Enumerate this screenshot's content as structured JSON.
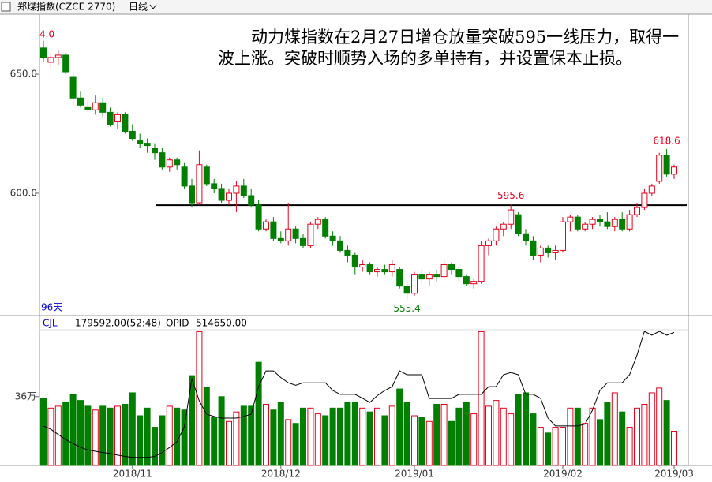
{
  "chart_data": [
    {
      "type": "candlestick",
      "title": "郑煤指数(CZCE 2770)",
      "period": "日线",
      "window": "96天",
      "annotation": "动力煤指数在2月27日增仓放量突破595一线压力，取得一波上涨。突破时顺势入场的多单持有，并设置保本止损。",
      "open": [
        661,
        655,
        657,
        658,
        649,
        640,
        636,
        635,
        638,
        634,
        630,
        633,
        626,
        622,
        621,
        619,
        617,
        611,
        614,
        611,
        603,
        596,
        611,
        604,
        602,
        597,
        600,
        603,
        599,
        595,
        585,
        588,
        581,
        580,
        585,
        581,
        578,
        587,
        589,
        582,
        580,
        576,
        574,
        569,
        570,
        567,
        568,
        567,
        568,
        561,
        558,
        566,
        564,
        566,
        565,
        570,
        568,
        565,
        562,
        563,
        578,
        580,
        585,
        587,
        591,
        583,
        580,
        574,
        577,
        575,
        576,
        588,
        590,
        585,
        587,
        589,
        588,
        586,
        589,
        585,
        591,
        594,
        600,
        605,
        616,
        608
      ],
      "high": [
        664,
        659,
        660,
        659,
        651,
        643,
        639,
        641,
        640,
        636,
        634,
        634,
        629,
        625,
        623,
        621,
        619,
        615,
        615,
        613,
        606,
        618,
        612,
        606,
        604,
        602,
        605,
        606,
        602,
        597,
        589,
        590,
        584,
        596,
        586,
        583,
        588,
        590,
        590,
        584,
        582,
        578,
        575,
        572,
        571,
        569,
        570,
        572,
        569,
        563,
        567,
        568,
        567,
        568,
        572,
        571,
        569,
        566,
        564,
        580,
        581,
        586,
        588,
        595.6,
        592,
        585,
        582,
        578,
        578,
        578,
        590,
        591,
        591,
        588,
        590,
        591,
        592,
        590,
        592,
        593,
        596,
        602,
        604,
        617,
        618.6,
        612
      ],
      "low": [
        655,
        652,
        654,
        650,
        637,
        636,
        634,
        633,
        632,
        628,
        627,
        625,
        622,
        619,
        617,
        614,
        610,
        609,
        610,
        602,
        594,
        595,
        603,
        600,
        596,
        595,
        592,
        598,
        594,
        584,
        584,
        580,
        579,
        578,
        579,
        577,
        577,
        585,
        581,
        578,
        575,
        571,
        566,
        567,
        566,
        565,
        566,
        565,
        560,
        555.4,
        557,
        562,
        561,
        563,
        564,
        566,
        563,
        561,
        560,
        562,
        574,
        578,
        582,
        585,
        582,
        578,
        572,
        571,
        573,
        572,
        575,
        584,
        584,
        584,
        585,
        586,
        585,
        584,
        584,
        584,
        590,
        593,
        599,
        604,
        607,
        606
      ],
      "close": [
        657,
        657,
        658,
        651,
        640,
        637,
        635,
        638,
        634,
        629,
        633,
        626,
        623,
        621,
        620,
        617,
        611,
        614,
        612,
        603,
        596,
        612,
        604,
        602,
        597,
        600,
        603,
        599,
        595,
        585,
        588,
        581,
        580,
        585,
        581,
        578,
        587,
        589,
        582,
        580,
        576,
        574,
        569,
        570,
        567,
        568,
        567,
        570,
        561,
        558,
        566,
        564,
        566,
        565,
        570,
        568,
        565,
        562,
        563,
        578,
        580,
        585,
        587,
        593,
        583,
        580,
        574,
        577,
        575,
        576,
        588,
        590,
        585,
        587,
        589,
        588,
        586,
        589,
        585,
        591,
        594,
        600,
        603,
        616,
        608,
        611
      ],
      "ylim": [
        549.3,
        675.2
      ],
      "yticks": [
        {
          "value": 600,
          "label": "600.0"
        },
        {
          "value": 650,
          "label": "650.0"
        }
      ],
      "up_color": "#e8001c",
      "down_color": "#007f00",
      "point_labels": [
        {
          "value": 595.6,
          "label": "595.6"
        },
        {
          "value": 555.4,
          "label": "555.4"
        },
        {
          "value": 618.6,
          "label": "618.6"
        }
      ],
      "clipped_label": "4.0",
      "level_line": 595
    },
    {
      "type": "bar",
      "readout": "179592.00(52:48)",
      "categories": [
        null,
        null,
        null,
        null,
        null,
        null,
        null,
        null,
        null,
        null,
        null,
        null,
        "2018/11",
        null,
        null,
        null,
        null,
        null,
        null,
        null,
        null,
        null,
        null,
        null,
        null,
        null,
        null,
        null,
        null,
        null,
        null,
        null,
        "2018/12",
        null,
        null,
        null,
        null,
        null,
        null,
        null,
        null,
        null,
        null,
        null,
        null,
        null,
        null,
        null,
        null,
        null,
        "2019/01",
        null,
        null,
        null,
        null,
        null,
        null,
        null,
        null,
        null,
        null,
        null,
        null,
        null,
        null,
        null,
        null,
        null,
        null,
        null,
        "2019/02",
        null,
        null,
        null,
        null,
        null,
        null,
        null,
        null,
        null,
        null,
        null,
        null,
        null,
        null,
        "2019/03"
      ],
      "series": [
        {
          "name": "CJL",
          "values": [
            350000,
            300000,
            310000,
            330000,
            370000,
            340000,
            310000,
            290000,
            310000,
            300000,
            310000,
            320000,
            380000,
            260000,
            300000,
            200000,
            260000,
            310000,
            300000,
            290000,
            470000,
            700000,
            410000,
            250000,
            360000,
            230000,
            280000,
            310000,
            310000,
            540000,
            320000,
            290000,
            330000,
            240000,
            220000,
            300000,
            300000,
            270000,
            260000,
            300000,
            300000,
            330000,
            330000,
            300000,
            280000,
            300000,
            260000,
            310000,
            400000,
            330000,
            260000,
            250000,
            230000,
            320000,
            320000,
            230000,
            300000,
            330000,
            270000,
            700000,
            310000,
            340000,
            300000,
            270000,
            370000,
            380000,
            270000,
            200000,
            170000,
            200000,
            200000,
            300000,
            300000,
            220000,
            300000,
            240000,
            330000,
            380000,
            280000,
            200000,
            300000,
            320000,
            380000,
            405000,
            340000,
            179592
          ]
        },
        {
          "name": "OPID",
          "readout": "514650.00",
          "axis": "y2",
          "color": "#000000",
          "values": [
            153000,
            140000,
            120000,
            100000,
            85000,
            70000,
            60000,
            55000,
            50000,
            46000,
            40000,
            35000,
            31000,
            31000,
            31000,
            35000,
            50000,
            70000,
            92000,
            150000,
            336000,
            250000,
            198000,
            190000,
            183000,
            183000,
            183000,
            190000,
            198000,
            305000,
            366000,
            366000,
            340000,
            320000,
            310000,
            320000,
            320000,
            320000,
            320000,
            290000,
            275000,
            275000,
            275000,
            260000,
            244000,
            270000,
            290000,
            305000,
            366000,
            351000,
            351000,
            351000,
            259000,
            259000,
            259000,
            259000,
            275000,
            275000,
            275000,
            275000,
            305000,
            305000,
            351000,
            360000,
            351000,
            275000,
            275000,
            260000,
            183000,
            153000,
            153000,
            153000,
            153000,
            160000,
            214000,
            290000,
            320000,
            320000,
            320000,
            351000,
            427000,
            519000,
            504000,
            519000,
            504000,
            514650
          ]
        }
      ],
      "ylim": [
        0,
        710000
      ],
      "yticks": [
        {
          "value": 360000,
          "label": "36万"
        }
      ],
      "y2lim": [
        0,
        525000
      ]
    }
  ]
}
